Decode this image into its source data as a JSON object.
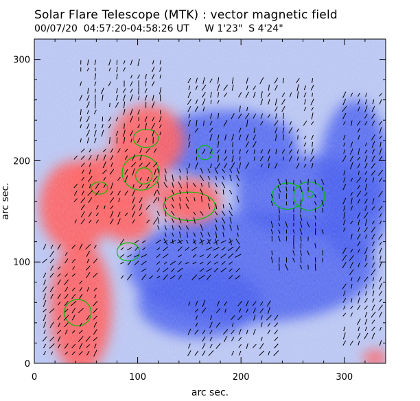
{
  "header": {
    "title": "Solar Flare Telescope (MTK) : vector magnetic field",
    "subtitle": "00/07/20  04:57:20-04:58:26 UT     W 1'23\"  S 4'24\""
  },
  "chart_data": {
    "type": "heatmap",
    "title": "Solar Flare Telescope (MTK) : vector magnetic field",
    "xlabel": "arc sec.",
    "ylabel": "arc sec.",
    "xlim": [
      0,
      340
    ],
    "ylim": [
      0,
      320
    ],
    "xticks": [
      0,
      100,
      200,
      300
    ],
    "yticks": [
      0,
      100,
      200,
      300
    ],
    "colors": {
      "positive": "#ff5a5a",
      "negative": "#3f56ee",
      "contour": "#00c000",
      "vector": "#000000"
    },
    "positive_regions": [
      {
        "cx": 45,
        "cy": 55,
        "rx": 30,
        "ry": 65
      },
      {
        "cx": 40,
        "cy": 155,
        "rx": 35,
        "ry": 45
      },
      {
        "cx": 80,
        "cy": 180,
        "rx": 45,
        "ry": 28
      },
      {
        "cx": 110,
        "cy": 220,
        "rx": 35,
        "ry": 35
      },
      {
        "cx": 150,
        "cy": 160,
        "rx": 30,
        "ry": 22
      },
      {
        "cx": 90,
        "cy": 140,
        "rx": 25,
        "ry": 20
      },
      {
        "cx": 330,
        "cy": 5,
        "rx": 12,
        "ry": 8
      }
    ],
    "negative_regions": [
      {
        "cx": 185,
        "cy": 215,
        "rx": 70,
        "ry": 35
      },
      {
        "cx": 265,
        "cy": 165,
        "rx": 70,
        "ry": 40
      },
      {
        "cx": 210,
        "cy": 95,
        "rx": 120,
        "ry": 55
      },
      {
        "cx": 310,
        "cy": 180,
        "rx": 35,
        "ry": 80
      },
      {
        "cx": 160,
        "cy": 60,
        "rx": 60,
        "ry": 35
      }
    ],
    "contours": [
      {
        "cx": 108,
        "cy": 222,
        "rx": 12,
        "ry": 9
      },
      {
        "cx": 103,
        "cy": 188,
        "rx": 18,
        "ry": 17
      },
      {
        "cx": 106,
        "cy": 185,
        "rx": 8,
        "ry": 8
      },
      {
        "cx": 63,
        "cy": 173,
        "rx": 8,
        "ry": 6
      },
      {
        "cx": 150,
        "cy": 155,
        "rx": 25,
        "ry": 14
      },
      {
        "cx": 165,
        "cy": 208,
        "rx": 7,
        "ry": 7
      },
      {
        "cx": 245,
        "cy": 165,
        "rx": 15,
        "ry": 13
      },
      {
        "cx": 266,
        "cy": 165,
        "rx": 15,
        "ry": 14
      },
      {
        "cx": 267,
        "cy": 167,
        "rx": 3,
        "ry": 3
      },
      {
        "cx": 91,
        "cy": 110,
        "rx": 11,
        "ry": 9
      },
      {
        "cx": 42,
        "cy": 50,
        "rx": 13,
        "ry": 13
      }
    ],
    "vector_blocks": [
      {
        "x0": 45,
        "x1": 125,
        "y0": 220,
        "y1": 300,
        "angle": 75
      },
      {
        "x0": 40,
        "x1": 120,
        "y0": 140,
        "y1": 215,
        "angle": 60
      },
      {
        "x0": 150,
        "x1": 270,
        "y0": 195,
        "y1": 280,
        "angle": 70
      },
      {
        "x0": 120,
        "x1": 200,
        "y0": 120,
        "y1": 190,
        "angle": 110
      },
      {
        "x0": 230,
        "x1": 280,
        "y0": 95,
        "y1": 185,
        "angle": 100
      },
      {
        "x0": 300,
        "x1": 335,
        "y0": 20,
        "y1": 270,
        "angle": 65
      },
      {
        "x0": 85,
        "x1": 200,
        "y0": 85,
        "y1": 120,
        "angle": 40
      },
      {
        "x0": 10,
        "x1": 60,
        "y0": 10,
        "y1": 120,
        "angle": 55
      },
      {
        "x0": 150,
        "x1": 240,
        "y0": 10,
        "y1": 60,
        "angle": 60
      }
    ]
  }
}
